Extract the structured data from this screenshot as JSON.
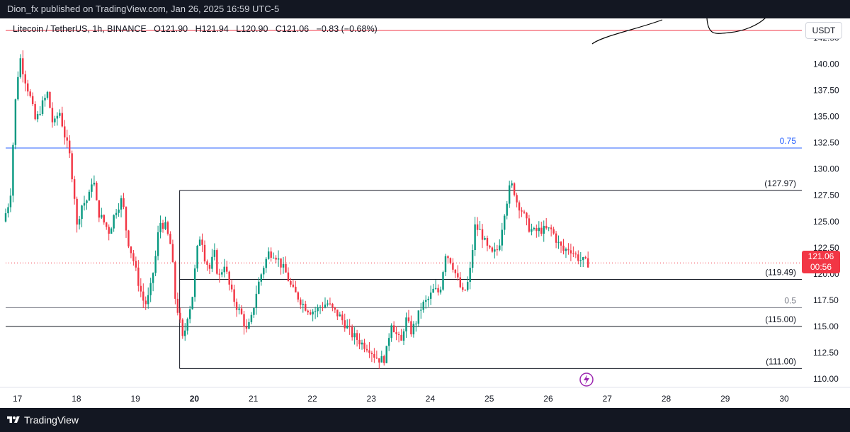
{
  "header": {
    "published": "Dion_fx published on TradingView.com, Jan 26, 2025 16:59 UTC-5"
  },
  "legend": {
    "symbol": "Litecoin / TetherUS, 1h, BINANCE",
    "open": "O121.90",
    "high": "H121.94",
    "low": "L120.90",
    "close": "C121.06",
    "change": "−0.83 (−0.68%)"
  },
  "currency_button": "USDT",
  "last_price": {
    "price": "121.06",
    "countdown": "00:56"
  },
  "footer": {
    "brand": "TradingView"
  },
  "colors": {
    "up": "#089981",
    "down": "#f23645",
    "fib_blue": "#2962ff",
    "level_gray": "#131722"
  },
  "chart_data": {
    "type": "candlestick",
    "y_ticks": [
      "110.00",
      "112.50",
      "115.00",
      "117.50",
      "120.00",
      "122.50",
      "125.00",
      "127.50",
      "130.00",
      "132.50",
      "135.00",
      "137.50",
      "140.00",
      "142.50"
    ],
    "ylim": [
      109.2,
      143.0
    ],
    "x_ticks": [
      {
        "label": "17",
        "day": 17
      },
      {
        "label": "18",
        "day": 18
      },
      {
        "label": "19",
        "day": 19
      },
      {
        "label": "20",
        "day": 20
      },
      {
        "label": "21",
        "day": 21
      },
      {
        "label": "22",
        "day": 22
      },
      {
        "label": "23",
        "day": 23
      },
      {
        "label": "24",
        "day": 24
      },
      {
        "label": "25",
        "day": 25
      },
      {
        "label": "26",
        "day": 26
      },
      {
        "label": "27",
        "day": 27
      },
      {
        "label": "28",
        "day": 28
      },
      {
        "label": "29",
        "day": 29
      },
      {
        "label": "30",
        "day": 30
      }
    ],
    "xlim": [
      16.8,
      30.3
    ],
    "price_path": [
      [
        16.8,
        125.0
      ],
      [
        16.92,
        127.3
      ],
      [
        17.0,
        136.0
      ],
      [
        17.08,
        140.8
      ],
      [
        17.15,
        139.0
      ],
      [
        17.25,
        137.0
      ],
      [
        17.35,
        134.5
      ],
      [
        17.45,
        136.0
      ],
      [
        17.55,
        137.2
      ],
      [
        17.65,
        134.0
      ],
      [
        17.75,
        135.6
      ],
      [
        17.85,
        133.0
      ],
      [
        17.92,
        131.5
      ],
      [
        18.0,
        128.0
      ],
      [
        18.05,
        124.5
      ],
      [
        18.12,
        126.5
      ],
      [
        18.25,
        127.2
      ],
      [
        18.32,
        129.5
      ],
      [
        18.4,
        126.0
      ],
      [
        18.5,
        125.0
      ],
      [
        18.6,
        124.0
      ],
      [
        18.7,
        126.0
      ],
      [
        18.82,
        127.2
      ],
      [
        18.9,
        123.5
      ],
      [
        19.0,
        121.5
      ],
      [
        19.1,
        119.0
      ],
      [
        19.2,
        117.0
      ],
      [
        19.28,
        118.0
      ],
      [
        19.38,
        121.5
      ],
      [
        19.45,
        125.0
      ],
      [
        19.55,
        124.5
      ],
      [
        19.65,
        122.5
      ],
      [
        19.72,
        117.5
      ],
      [
        19.78,
        116.0
      ],
      [
        19.85,
        113.5
      ],
      [
        19.92,
        116.0
      ],
      [
        20.0,
        117.5
      ],
      [
        20.08,
        122.0
      ],
      [
        20.15,
        124.0
      ],
      [
        20.22,
        121.5
      ],
      [
        20.3,
        120.5
      ],
      [
        20.38,
        122.0
      ],
      [
        20.45,
        119.5
      ],
      [
        20.55,
        121.0
      ],
      [
        20.65,
        118.5
      ],
      [
        20.75,
        117.0
      ],
      [
        20.85,
        116.0
      ],
      [
        20.92,
        114.5
      ],
      [
        21.0,
        115.5
      ],
      [
        21.1,
        118.5
      ],
      [
        21.2,
        120.5
      ],
      [
        21.3,
        122.0
      ],
      [
        21.4,
        122.0
      ],
      [
        21.5,
        121.0
      ],
      [
        21.6,
        120.0
      ],
      [
        21.7,
        118.5
      ],
      [
        21.8,
        117.8
      ],
      [
        21.9,
        117.0
      ],
      [
        22.0,
        116.5
      ],
      [
        22.1,
        116.5
      ],
      [
        22.2,
        117.0
      ],
      [
        22.3,
        117.2
      ],
      [
        22.4,
        116.5
      ],
      [
        22.5,
        116.0
      ],
      [
        22.6,
        115.2
      ],
      [
        22.7,
        114.3
      ],
      [
        22.8,
        113.8
      ],
      [
        22.9,
        113.3
      ],
      [
        23.0,
        113.0
      ],
      [
        23.1,
        112.2
      ],
      [
        23.2,
        111.8
      ],
      [
        23.28,
        112.0
      ],
      [
        23.38,
        115.5
      ],
      [
        23.48,
        114.0
      ],
      [
        23.55,
        113.5
      ],
      [
        23.62,
        115.8
      ],
      [
        23.72,
        114.5
      ],
      [
        23.8,
        115.5
      ],
      [
        23.9,
        117.0
      ],
      [
        24.0,
        117.5
      ],
      [
        24.1,
        118.5
      ],
      [
        24.2,
        118.2
      ],
      [
        24.3,
        122.0
      ],
      [
        24.4,
        121.2
      ],
      [
        24.5,
        119.5
      ],
      [
        24.6,
        118.0
      ],
      [
        24.7,
        119.5
      ],
      [
        24.8,
        124.5
      ],
      [
        24.9,
        124.0
      ],
      [
        25.0,
        122.5
      ],
      [
        25.1,
        121.8
      ],
      [
        25.2,
        122.5
      ],
      [
        25.3,
        126.0
      ],
      [
        25.4,
        128.5
      ],
      [
        25.45,
        128.3
      ],
      [
        25.5,
        127.0
      ],
      [
        25.6,
        126.0
      ],
      [
        25.7,
        124.5
      ],
      [
        25.8,
        124.0
      ],
      [
        25.9,
        124.2
      ],
      [
        26.0,
        124.2
      ],
      [
        26.1,
        124.2
      ],
      [
        26.2,
        123.0
      ],
      [
        26.3,
        122.2
      ],
      [
        26.4,
        122.5
      ],
      [
        26.5,
        121.8
      ],
      [
        26.58,
        121.4
      ],
      [
        26.68,
        121.06
      ]
    ],
    "levels": [
      {
        "label": "0.75",
        "price": 132.0,
        "color": "#2962ff",
        "from_day": 16.8
      },
      {
        "label": "(127.97)",
        "price": 127.97,
        "color": "#131722",
        "from_day": 19.75
      },
      {
        "label": "(119.49)",
        "price": 119.49,
        "color": "#131722",
        "from_day": 19.75
      },
      {
        "label": "0.5",
        "price": 116.8,
        "color": "#787b86",
        "from_day": 16.8
      },
      {
        "label": "(115.00)",
        "price": 115.0,
        "color": "#131722",
        "from_day": 16.8
      },
      {
        "label": "(111.00)",
        "price": 111.0,
        "color": "#131722",
        "from_day": 19.75
      },
      {
        "label": "",
        "price": 143.2,
        "color": "#f23645",
        "from_day": 16.8
      }
    ]
  }
}
